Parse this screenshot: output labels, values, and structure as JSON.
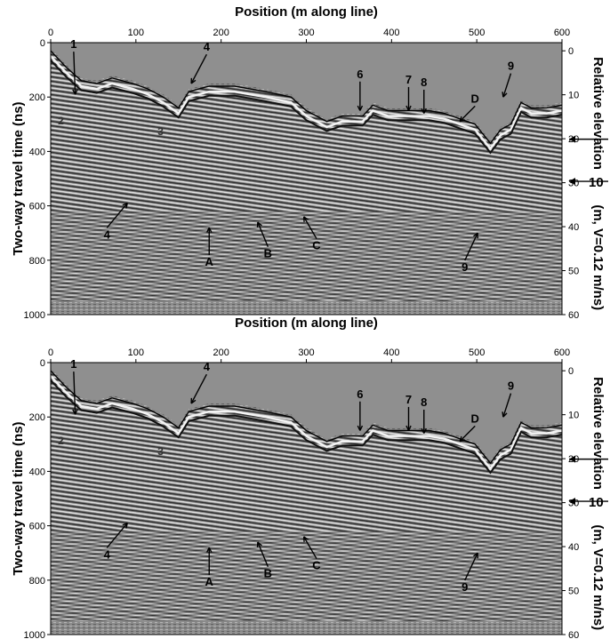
{
  "x_axis": {
    "label": "Position (m along line)",
    "ticks": [
      "0",
      "100",
      "200",
      "300",
      "400",
      "500",
      "600"
    ]
  },
  "y_axis": {
    "label": "Two-way travel time (ns)",
    "ticks": [
      "0",
      "200",
      "400",
      "600",
      "800",
      "1000"
    ]
  },
  "right_axis": {
    "label_main": "Relative elevation",
    "label_unit": "(m, V=0.12 m/ns)",
    "ticks": [
      "0",
      "10",
      "20",
      "30",
      "40",
      "50",
      "60"
    ],
    "marker": "10"
  },
  "panels": [
    {
      "name": "upper",
      "annotations": [
        "1",
        "2",
        "3",
        "4",
        "4",
        "6",
        "7",
        "8",
        "9",
        "9",
        "A",
        "B",
        "C",
        "D"
      ]
    },
    {
      "name": "lower",
      "annotations": [
        "1",
        "2",
        "3",
        "4",
        "4",
        "6",
        "7",
        "8",
        "9",
        "9",
        "A",
        "B",
        "C",
        "D"
      ]
    }
  ]
}
